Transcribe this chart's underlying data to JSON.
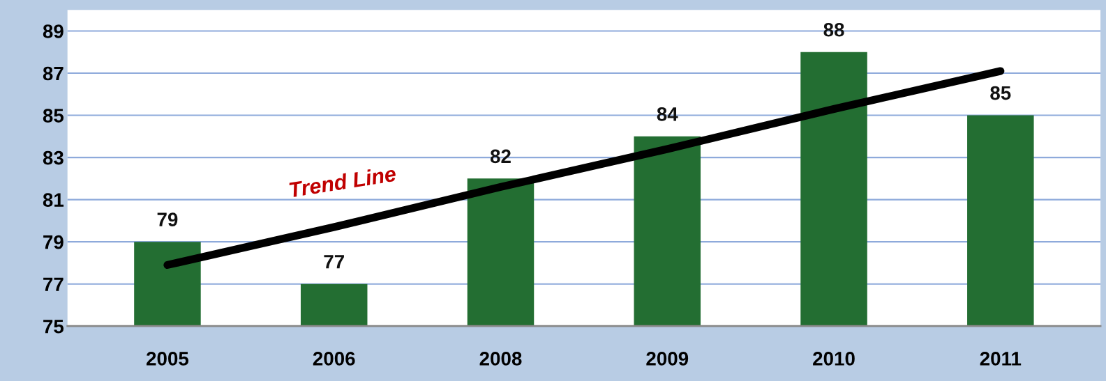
{
  "chart_data": {
    "type": "bar",
    "categories": [
      "2005",
      "2006",
      "2008",
      "2009",
      "2010",
      "2011"
    ],
    "series": [
      {
        "color": "#236e32",
        "values": [
          79,
          77,
          82,
          84,
          88,
          85
        ],
        "value_labels": [
          "79",
          "77",
          "82",
          "84",
          "88",
          "85"
        ]
      },
      {
        "type": "line",
        "color": "#000000",
        "values": [
          77.9,
          79.7,
          81.6,
          83.4,
          85.3,
          87.1
        ]
      }
    ],
    "ylim": [
      75,
      90
    ],
    "yticks": [
      75,
      77,
      79,
      81,
      83,
      85,
      87,
      89
    ],
    "grid": "y",
    "annotations": [
      "Trend Line"
    ]
  }
}
